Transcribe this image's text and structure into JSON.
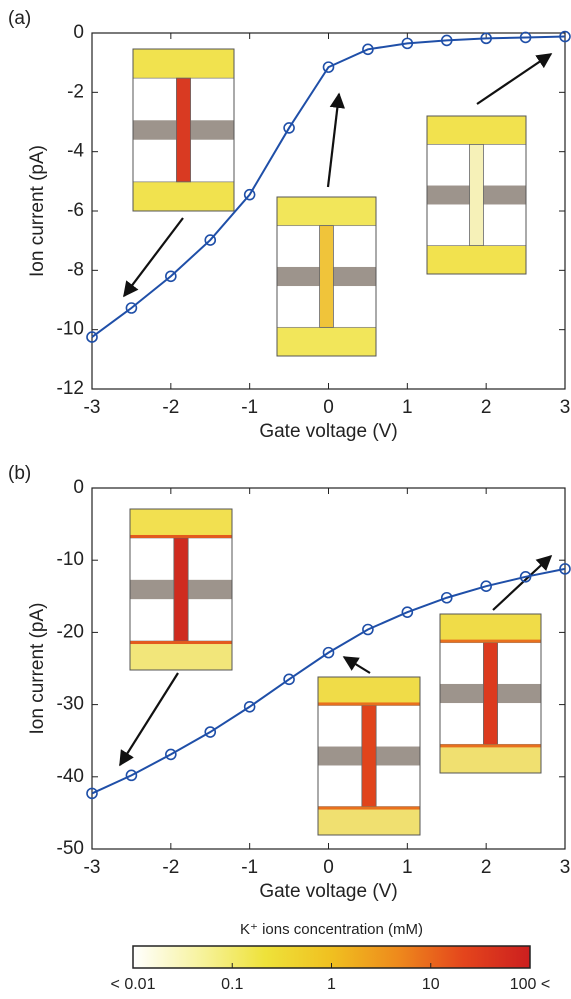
{
  "chart_data": [
    {
      "type": "line",
      "panel_label": "(a)",
      "x_label": "Gate voltage (V)",
      "y_label": "Ion current (pA)",
      "x": [
        -3,
        -2.5,
        -2,
        -1.5,
        -1,
        -0.5,
        0,
        0.5,
        1,
        1.5,
        2,
        2.5,
        3
      ],
      "series": [
        {
          "color": "#1f4fa8",
          "values": [
            -10.25,
            -9.27,
            -8.2,
            -6.98,
            -5.45,
            -3.2,
            -1.15,
            -0.55,
            -0.35,
            -0.25,
            -0.18,
            -0.15,
            -0.12
          ]
        }
      ],
      "xlim": [
        -3,
        3
      ],
      "xticks": [
        -3,
        -2,
        -1,
        0,
        1,
        2,
        3
      ],
      "ylim": [
        -12,
        0
      ],
      "yticks": [
        -12,
        -10,
        -8,
        -6,
        -4,
        -2,
        0
      ]
    },
    {
      "type": "line",
      "panel_label": "(b)",
      "x_label": "Gate voltage (V)",
      "y_label": "Ion current (pA)",
      "x": [
        -3,
        -2.5,
        -2,
        -1.5,
        -1,
        -0.5,
        0,
        0.5,
        1,
        1.5,
        2,
        2.5,
        3
      ],
      "series": [
        {
          "color": "#1f4fa8",
          "values": [
            -42.3,
            -39.8,
            -36.9,
            -33.8,
            -30.3,
            -26.5,
            -22.8,
            -19.6,
            -17.2,
            -15.2,
            -13.6,
            -12.3,
            -11.2
          ]
        }
      ],
      "xlim": [
        -3,
        3
      ],
      "xticks": [
        -3,
        -2,
        -1,
        0,
        1,
        2,
        3
      ],
      "ylim": [
        -50,
        0
      ],
      "yticks": [
        -50,
        -40,
        -30,
        -20,
        -10,
        0
      ]
    },
    {
      "type": "colorbar",
      "title": "K⁺ ions concentration (mM)",
      "log_scale": true,
      "colors": [
        "#ffffff",
        "#f7f3a0",
        "#eee23a",
        "#f0c020",
        "#ee8a1c",
        "#e4451c",
        "#cc1f1f"
      ],
      "xlim": [
        0.01,
        100
      ],
      "xticks": [
        {
          "value": 0.01,
          "label": "< 0.01"
        },
        0.1,
        1,
        10,
        {
          "value": 100,
          "label": "100 <"
        }
      ]
    }
  ]
}
